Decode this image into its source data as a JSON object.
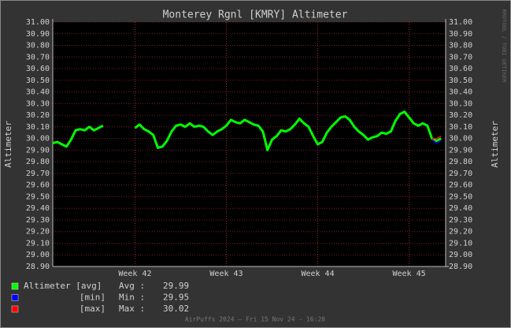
{
  "chart_data": {
    "type": "line",
    "title": "Monterey Rgnl [KMRY] Altimeter",
    "y_label": "Altimeter",
    "watermark": "RRDTOOL / TOBI OETIKER",
    "footer": "AirPuffs 2024 — Fri 15 Nov 24 - 16:28",
    "grid": true,
    "xlim": [
      41.1,
      45.4
    ],
    "xticks": [
      {
        "value": 42,
        "label": "Week 42"
      },
      {
        "value": 43,
        "label": "Week 43"
      },
      {
        "value": 44,
        "label": "Week 44"
      },
      {
        "value": 45,
        "label": "Week 45"
      }
    ],
    "ylim": [
      28.9,
      31.0
    ],
    "yticks": [
      {
        "value": 28.9,
        "label": "28.90"
      },
      {
        "value": 29.0,
        "label": "29.00"
      },
      {
        "value": 29.1,
        "label": "29.10"
      },
      {
        "value": 29.2,
        "label": "29.20"
      },
      {
        "value": 29.3,
        "label": "29.30"
      },
      {
        "value": 29.4,
        "label": "29.40"
      },
      {
        "value": 29.5,
        "label": "29.50"
      },
      {
        "value": 29.6,
        "label": "29.60"
      },
      {
        "value": 29.7,
        "label": "29.70"
      },
      {
        "value": 29.8,
        "label": "29.80"
      },
      {
        "value": 29.9,
        "label": "29.90"
      },
      {
        "value": 30.0,
        "label": "30.00"
      },
      {
        "value": 30.1,
        "label": "30.10"
      },
      {
        "value": 30.2,
        "label": "30.20"
      },
      {
        "value": 30.3,
        "label": "30.30"
      },
      {
        "value": 30.4,
        "label": "30.40"
      },
      {
        "value": 30.5,
        "label": "30.50"
      },
      {
        "value": 30.6,
        "label": "30.60"
      },
      {
        "value": 30.7,
        "label": "30.70"
      },
      {
        "value": 30.8,
        "label": "30.80"
      },
      {
        "value": 30.9,
        "label": "30.90"
      },
      {
        "value": 31.0,
        "label": "31.00"
      }
    ],
    "x": [
      41.1,
      41.15,
      41.2,
      41.25,
      41.3,
      41.35,
      41.4,
      41.45,
      41.5,
      41.55,
      41.6,
      41.65,
      41.7,
      41.75,
      41.8,
      41.85,
      41.9,
      41.95,
      42.0,
      42.05,
      42.1,
      42.15,
      42.2,
      42.25,
      42.3,
      42.35,
      42.4,
      42.45,
      42.5,
      42.55,
      42.6,
      42.65,
      42.7,
      42.75,
      42.8,
      42.85,
      42.9,
      42.95,
      43.0,
      43.05,
      43.1,
      43.15,
      43.2,
      43.25,
      43.3,
      43.35,
      43.4,
      43.45,
      43.5,
      43.55,
      43.6,
      43.65,
      43.7,
      43.75,
      43.8,
      43.85,
      43.9,
      43.95,
      44.0,
      44.05,
      44.1,
      44.15,
      44.2,
      44.25,
      44.3,
      44.35,
      44.4,
      44.45,
      44.5,
      44.55,
      44.6,
      44.65,
      44.7,
      44.75,
      44.8,
      44.85,
      44.9,
      44.95,
      45.0,
      45.05,
      45.1,
      45.15,
      45.2,
      45.25,
      45.3,
      45.35
    ],
    "series": [
      {
        "name": "Altimeter [avg]",
        "color": "#00ff00",
        "stat_label": "Avg :",
        "stat": 29.99,
        "values": [
          29.96,
          29.97,
          29.95,
          29.93,
          29.99,
          30.07,
          30.08,
          30.07,
          30.1,
          30.07,
          30.09,
          30.11,
          null,
          null,
          null,
          null,
          null,
          null,
          30.09,
          30.12,
          30.08,
          30.06,
          30.03,
          29.92,
          29.93,
          29.98,
          30.06,
          30.11,
          30.12,
          30.1,
          30.13,
          30.1,
          30.11,
          30.1,
          30.06,
          30.03,
          30.06,
          30.08,
          30.11,
          30.16,
          30.14,
          30.13,
          30.16,
          30.14,
          30.12,
          30.11,
          30.06,
          29.9,
          29.99,
          30.02,
          30.07,
          30.06,
          30.08,
          30.12,
          30.17,
          30.13,
          30.1,
          30.02,
          29.95,
          29.97,
          30.05,
          30.1,
          30.14,
          30.18,
          30.19,
          30.16,
          30.1,
          30.06,
          30.03,
          29.99,
          30.01,
          30.02,
          30.05,
          30.04,
          30.06,
          30.15,
          30.21,
          30.23,
          30.18,
          30.13,
          30.11,
          30.13,
          30.11,
          30.0,
          29.98,
          30.0
        ]
      },
      {
        "name": "[min]",
        "color": "#0000ff",
        "stat_label": "Min :",
        "stat": 29.95,
        "values": [
          null,
          null,
          null,
          null,
          null,
          null,
          null,
          null,
          null,
          null,
          null,
          null,
          null,
          null,
          null,
          null,
          null,
          null,
          null,
          null,
          null,
          null,
          null,
          null,
          null,
          null,
          null,
          null,
          null,
          null,
          null,
          null,
          null,
          null,
          null,
          null,
          null,
          null,
          null,
          null,
          null,
          null,
          null,
          null,
          null,
          null,
          null,
          null,
          null,
          null,
          null,
          null,
          null,
          null,
          null,
          null,
          null,
          null,
          null,
          null,
          null,
          null,
          null,
          null,
          null,
          null,
          null,
          null,
          null,
          null,
          null,
          null,
          null,
          null,
          null,
          null,
          null,
          null,
          null,
          null,
          null,
          null,
          null,
          29.99,
          29.96,
          29.98
        ]
      },
      {
        "name": "[max]",
        "color": "#ff0000",
        "stat_label": "Max :",
        "stat": 30.02,
        "values": [
          null,
          null,
          null,
          null,
          null,
          null,
          null,
          null,
          null,
          null,
          null,
          null,
          null,
          null,
          null,
          null,
          null,
          null,
          null,
          null,
          null,
          null,
          null,
          null,
          null,
          null,
          null,
          null,
          null,
          null,
          null,
          null,
          null,
          null,
          null,
          null,
          null,
          null,
          null,
          null,
          null,
          null,
          null,
          null,
          null,
          null,
          null,
          null,
          null,
          null,
          null,
          null,
          null,
          null,
          null,
          null,
          null,
          null,
          null,
          null,
          null,
          null,
          null,
          null,
          null,
          null,
          null,
          null,
          null,
          null,
          null,
          null,
          null,
          null,
          null,
          null,
          null,
          null,
          null,
          null,
          null,
          null,
          null,
          30.0,
          30.0,
          30.02
        ]
      }
    ]
  }
}
